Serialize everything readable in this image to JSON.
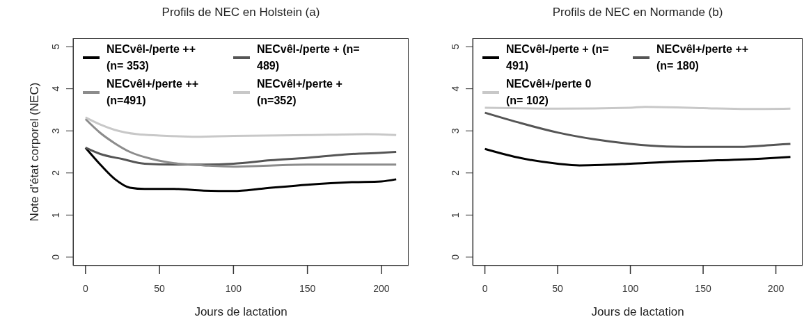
{
  "chart_data": [
    {
      "type": "line",
      "title": "Profils de NEC en Holstein (a)",
      "xlabel": "Jours de lactation",
      "ylabel": "Note d'état corporel (NEC)",
      "xlim": [
        -8.4,
        218.4
      ],
      "ylim": [
        -0.2,
        5.2
      ],
      "xticks": [
        0,
        50,
        100,
        150,
        200
      ],
      "yticks": [
        0,
        1,
        2,
        3,
        4,
        5
      ],
      "grid": false,
      "legend": "top left",
      "marker": "none",
      "series": [
        {
          "name": "NECvêl-/perte ++ (n= 353)",
          "color": "#000000",
          "x": [
            0,
            10,
            20,
            30,
            40,
            60,
            80,
            100,
            120,
            150,
            180,
            200,
            210
          ],
          "values": [
            2.6,
            2.2,
            1.85,
            1.65,
            1.62,
            1.62,
            1.58,
            1.57,
            1.63,
            1.72,
            1.78,
            1.8,
            1.85
          ]
        },
        {
          "name": "NECvêl-/perte + (n= 489)",
          "color": "#555555",
          "x": [
            0,
            10,
            25,
            40,
            60,
            80,
            100,
            125,
            150,
            175,
            200,
            210
          ],
          "values": [
            2.6,
            2.45,
            2.33,
            2.22,
            2.2,
            2.2,
            2.22,
            2.3,
            2.36,
            2.44,
            2.48,
            2.5
          ]
        },
        {
          "name": "NECvêl+/perte ++ (n=491)",
          "color": "#8c8c8c",
          "x": [
            0,
            10,
            20,
            30,
            45,
            60,
            80,
            100,
            120,
            150,
            180,
            210
          ],
          "values": [
            3.28,
            2.95,
            2.7,
            2.5,
            2.33,
            2.23,
            2.18,
            2.15,
            2.17,
            2.2,
            2.2,
            2.2
          ]
        },
        {
          "name": "NECvêl+/perte + (n=352)",
          "color": "#c8c8c8",
          "x": [
            0,
            10,
            20,
            35,
            50,
            75,
            100,
            150,
            190,
            210
          ],
          "values": [
            3.32,
            3.15,
            3.02,
            2.92,
            2.89,
            2.86,
            2.88,
            2.9,
            2.92,
            2.9
          ]
        }
      ]
    },
    {
      "type": "line",
      "title": "Profils de NEC en Normande (b)",
      "xlabel": "Jours de lactation",
      "xlim": [
        -8.4,
        218.4
      ],
      "ylim": [
        -0.2,
        5.2
      ],
      "xticks": [
        0,
        50,
        100,
        150,
        200
      ],
      "yticks": [
        0,
        1,
        2,
        3,
        4,
        5
      ],
      "grid": false,
      "legend": "top left",
      "marker": "none",
      "series": [
        {
          "name": "NECvêl-/perte + (n= 491)",
          "color": "#000000",
          "x": [
            0,
            25,
            50,
            65,
            80,
            100,
            130,
            160,
            190,
            210
          ],
          "values": [
            2.57,
            2.35,
            2.22,
            2.18,
            2.19,
            2.22,
            2.27,
            2.3,
            2.34,
            2.38
          ]
        },
        {
          "name": "NECvêl+/perte ++ (n= 180)",
          "color": "#555555",
          "x": [
            0,
            25,
            50,
            75,
            100,
            125,
            150,
            175,
            200,
            210
          ],
          "values": [
            3.43,
            3.18,
            2.96,
            2.8,
            2.69,
            2.63,
            2.62,
            2.62,
            2.67,
            2.69
          ]
        },
        {
          "name": "NECvêl+/perte 0 (n= 102)",
          "color": "#c8c8c8",
          "x": [
            0,
            50,
            100,
            110,
            150,
            180,
            210
          ],
          "values": [
            3.55,
            3.53,
            3.55,
            3.57,
            3.54,
            3.52,
            3.53
          ]
        }
      ]
    }
  ]
}
